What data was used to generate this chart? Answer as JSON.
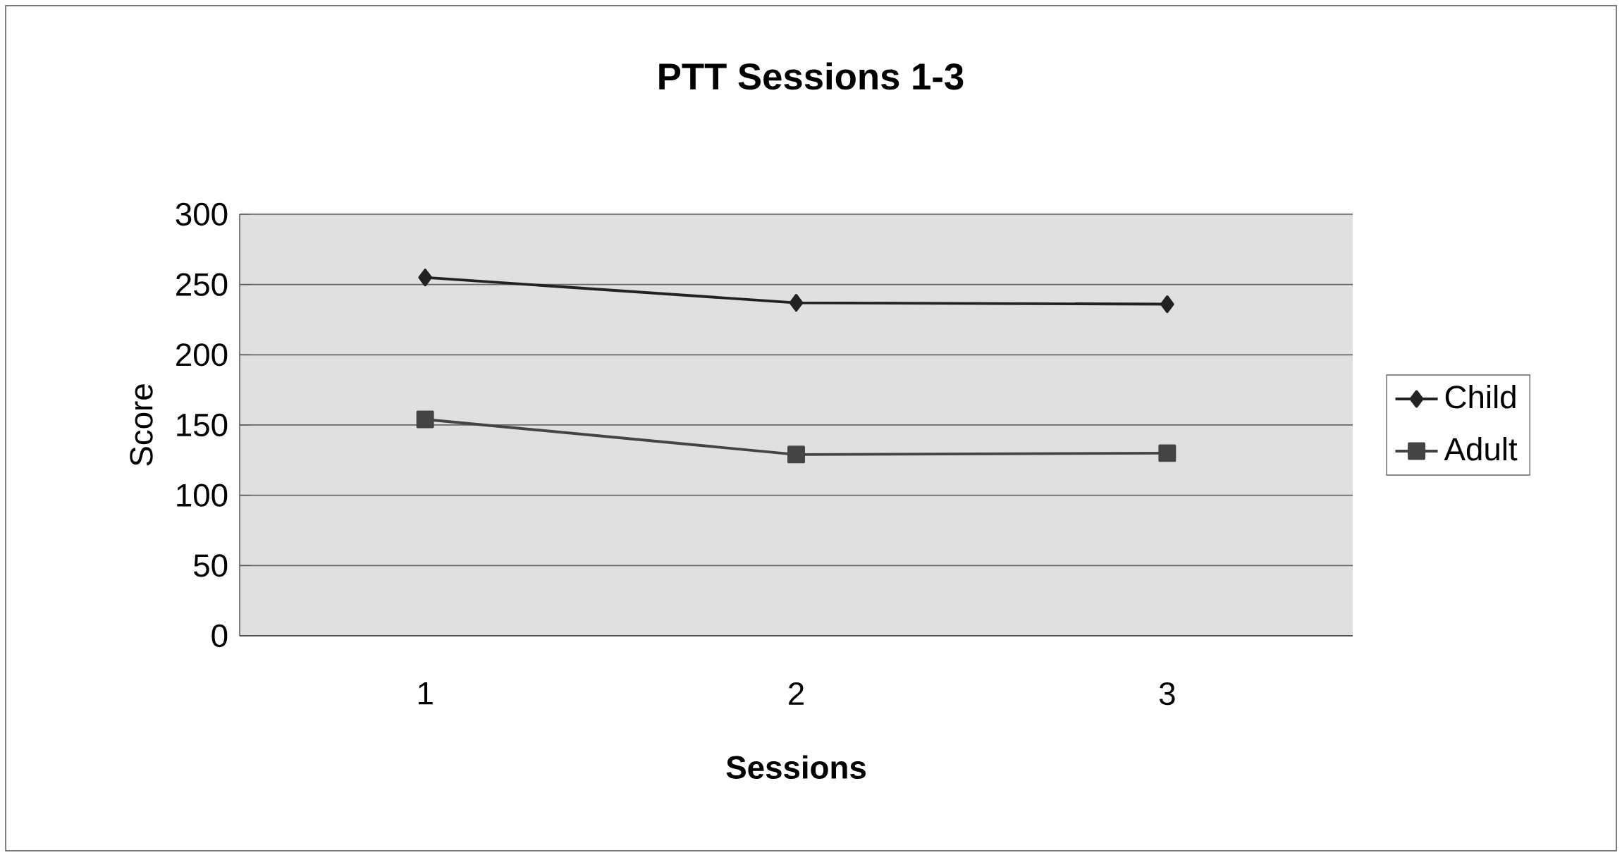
{
  "chart_data": {
    "type": "line",
    "title": "PTT Sessions 1-3",
    "xlabel": "Sessions",
    "ylabel": "Score",
    "categories": [
      "1",
      "2",
      "3"
    ],
    "series": [
      {
        "name": "Child",
        "color": "#222222",
        "marker": "diamond",
        "values": [
          255,
          237,
          236
        ]
      },
      {
        "name": "Adult",
        "color": "#444444",
        "marker": "square",
        "values": [
          154,
          129,
          130
        ]
      }
    ],
    "ylim": [
      0,
      300
    ],
    "yticks": [
      0,
      50,
      100,
      150,
      200,
      250,
      300
    ],
    "grid": "y",
    "legend": "right",
    "line_style": "solid"
  }
}
